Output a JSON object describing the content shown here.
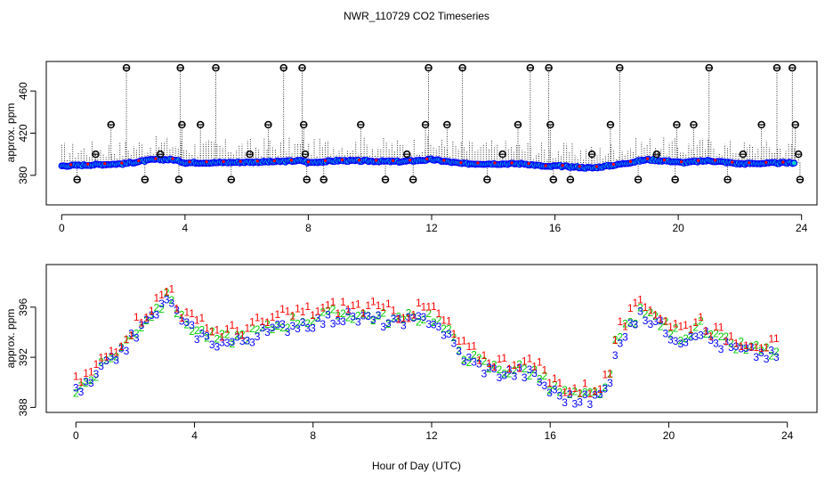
{
  "chart_data": {
    "title": "NWR_110729  CO2 Timeseries",
    "xlabel": "Hour of Day (UTC)",
    "colors": {
      "set1": "#ff0000",
      "set2": "#00cc00",
      "set3": "#0000ff",
      "whisker": "#000000",
      "outlier": "#000000",
      "fill_cyan": "#00cccc"
    },
    "panels": [
      {
        "id": "top",
        "type": "scatter",
        "ylabel": "approx. ppm",
        "xlim": [
          -0.5,
          24.5
        ],
        "ylim": [
          352,
          488
        ],
        "xticks": [
          0,
          4,
          8,
          12,
          16,
          20,
          24
        ],
        "yticks": [
          380,
          420,
          460
        ],
        "series": [
          {
            "name": "main",
            "x": [
              0,
              2,
              3,
              3.6,
              4,
              5,
              7,
              7.8,
              8,
              9,
              11,
              12,
              13,
              15,
              15.8,
              16,
              17.2,
              18,
              19,
              19.9,
              20.1,
              21,
              22,
              23.8
            ],
            "y": [
              389,
              391,
              395,
              395,
              392,
              392,
              393,
              394,
              392,
              394,
              393,
              395,
              391,
              391,
              388,
              389,
              387,
              390,
              395,
              393,
              392,
              394,
              391,
              392
            ]
          }
        ],
        "outliers": {
          "x": [
            0.5,
            1.1,
            1.6,
            2.1,
            2.7,
            3.2,
            3.8,
            3.85,
            3.9,
            4.5,
            5.0,
            5.5,
            6.1,
            6.7,
            7.2,
            7.8,
            7.85,
            7.9,
            7.95,
            8.5,
            9.7,
            10.5,
            11.2,
            11.4,
            11.8,
            11.9,
            12.5,
            13.0,
            13.8,
            14.3,
            14.8,
            15.2,
            15.8,
            15.85,
            15.95,
            16.5,
            17.2,
            17.8,
            18.1,
            18.7,
            19.3,
            19.9,
            19.95,
            20.5,
            21.0,
            21.6,
            22.1,
            22.7,
            23.2,
            23.7,
            23.8,
            23.9,
            23.95
          ],
          "y": [
            376,
            400,
            428,
            482,
            376,
            400,
            376,
            482,
            428,
            428,
            482,
            376,
            400,
            428,
            482,
            482,
            428,
            400,
            376,
            376,
            428,
            376,
            400,
            376,
            428,
            482,
            428,
            482,
            376,
            400,
            428,
            482,
            482,
            428,
            376,
            376,
            400,
            428,
            482,
            376,
            400,
            376,
            428,
            428,
            482,
            376,
            400,
            428,
            482,
            482,
            428,
            400,
            376
          ]
        }
      },
      {
        "id": "bottom",
        "type": "scatter",
        "ylabel": "approx. ppm",
        "xlim": [
          -1,
          25
        ],
        "ylim": [
          387.6,
          399.4
        ],
        "xticks": [
          0,
          4,
          8,
          12,
          16,
          20,
          24
        ],
        "yticks": [
          388,
          392,
          396
        ],
        "marker_labels": [
          "1",
          "2",
          "3"
        ],
        "key_x": [
          0,
          0.5,
          1,
          1.5,
          2,
          2.5,
          3,
          3.2,
          3.5,
          4,
          4.5,
          5,
          5.5,
          6,
          6.5,
          7,
          7.5,
          8,
          8.5,
          9,
          9.5,
          10,
          10.5,
          11,
          11.5,
          12,
          12.5,
          13,
          13.5,
          14,
          14.5,
          15,
          15.5,
          16,
          16.5,
          17,
          17.5,
          18,
          18.2,
          18.5,
          19,
          19.5,
          20,
          20.5,
          21,
          21.5,
          22,
          22.5,
          23,
          23.5
        ],
        "key_y": [
          389.5,
          390.3,
          391.6,
          392.8,
          394.2,
          395.5,
          396.6,
          397.2,
          395.2,
          394.4,
          393.8,
          393.5,
          393.7,
          394.1,
          394.4,
          394.8,
          395.1,
          395.2,
          395.4,
          395.6,
          395.5,
          395.4,
          395.2,
          395.0,
          395.3,
          395.5,
          394.2,
          392.5,
          391.8,
          391.3,
          391.1,
          391.2,
          390.9,
          389.7,
          389.2,
          388.9,
          389.1,
          390.0,
          393.2,
          394.3,
          395.6,
          395.4,
          394.3,
          393.8,
          394.7,
          393.6,
          393.2,
          392.9,
          392.7,
          392.5
        ],
        "series": [
          {
            "name": "1",
            "offset": 0.5,
            "noise": 0.6
          },
          {
            "name": "2",
            "offset": -0.1,
            "noise": 0.5
          },
          {
            "name": "3",
            "offset": -0.4,
            "noise": 0.5
          }
        ]
      }
    ]
  }
}
